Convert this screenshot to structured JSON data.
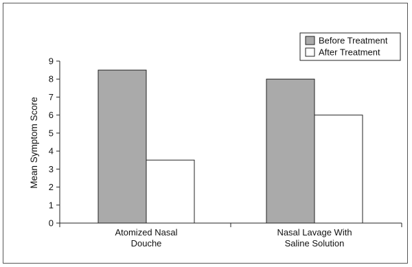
{
  "chart_data": {
    "type": "bar",
    "title": "",
    "xlabel": "",
    "ylabel": "Mean Symptom Score",
    "ylim": [
      0,
      9
    ],
    "yticks": [
      0,
      1,
      2,
      3,
      4,
      5,
      6,
      7,
      8,
      9
    ],
    "categories": [
      [
        "Atomized Nasal",
        "Douche"
      ],
      [
        "Nasal Lavage With",
        "Saline Solution"
      ]
    ],
    "series": [
      {
        "name": "Before Treatment",
        "values": [
          8.5,
          8.0
        ],
        "color": "#aaaaaa"
      },
      {
        "name": "After Treatment",
        "values": [
          3.5,
          6.0
        ],
        "color": "#ffffff"
      }
    ],
    "legend_position": "top-right",
    "grid": false
  }
}
